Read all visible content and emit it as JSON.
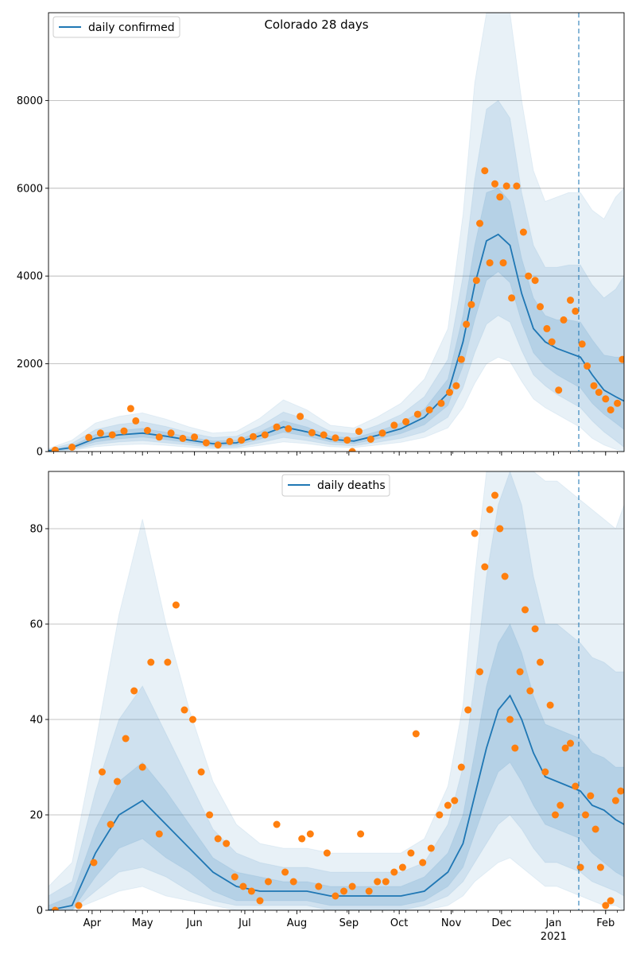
{
  "figure": {
    "title": "Colorado 28 days",
    "colors": {
      "line": "#1f77b4",
      "band": "#1f77b4",
      "points": "#ff7f0e",
      "grid": "#b0b0b0",
      "forecast_line": "#1f77b4"
    },
    "forecast_date": "2021-01-16"
  },
  "chart_data": [
    {
      "type": "line",
      "title": "Colorado 28 days",
      "legend": {
        "entries": [
          "daily confirmed"
        ],
        "placement": "top-left"
      },
      "xlabel": "",
      "ylabel": "",
      "x_range": [
        "2020-03-06",
        "2021-02-12"
      ],
      "ylim": [
        0,
        10000
      ],
      "y_ticks": [
        0,
        2000,
        4000,
        6000,
        8000
      ],
      "x_tick_labels": [
        "Apr",
        "May",
        "Jun",
        "Jul",
        "Aug",
        "Sep",
        "Oct",
        "Nov",
        "Dec",
        "Jan",
        "Feb"
      ],
      "x_tick_sublabel": {
        "Jan": "2021"
      },
      "grid": "horizontal",
      "forecast_date": "2021-01-16",
      "x": [
        "2020-03-06",
        "2020-03-20",
        "2020-04-03",
        "2020-04-17",
        "2020-05-01",
        "2020-05-15",
        "2020-05-29",
        "2020-06-12",
        "2020-06-26",
        "2020-07-10",
        "2020-07-24",
        "2020-08-07",
        "2020-08-21",
        "2020-09-04",
        "2020-09-18",
        "2020-10-02",
        "2020-10-16",
        "2020-10-30",
        "2020-11-08",
        "2020-11-15",
        "2020-11-22",
        "2020-11-29",
        "2020-12-06",
        "2020-12-13",
        "2020-12-20",
        "2020-12-27",
        "2021-01-03",
        "2021-01-10",
        "2021-01-17",
        "2021-01-24",
        "2021-01-31",
        "2021-02-07",
        "2021-02-12"
      ],
      "series": [
        {
          "name": "daily confirmed",
          "kind": "line",
          "values": [
            20,
            90,
            300,
            380,
            420,
            350,
            260,
            180,
            200,
            360,
            560,
            450,
            280,
            240,
            370,
            520,
            780,
            1330,
            2500,
            3800,
            4800,
            4950,
            4700,
            3600,
            2800,
            2500,
            2350,
            2250,
            2150,
            1750,
            1400,
            1250,
            1150
          ]
        },
        {
          "name": "",
          "kind": "band-50",
          "lower": [
            10,
            60,
            220,
            290,
            330,
            270,
            200,
            130,
            150,
            280,
            440,
            350,
            220,
            180,
            290,
            410,
            610,
            1050,
            1950,
            3000,
            3900,
            4100,
            3850,
            2950,
            2250,
            1950,
            1750,
            1600,
            1450,
            1100,
            850,
            650,
            500
          ],
          "upper": [
            35,
            130,
            390,
            480,
            530,
            440,
            330,
            240,
            260,
            450,
            700,
            560,
            350,
            310,
            460,
            650,
            970,
            1650,
            3100,
            4700,
            5900,
            6000,
            5700,
            4400,
            3500,
            3100,
            3000,
            3000,
            2950,
            2550,
            2200,
            2150,
            2150
          ]
        },
        {
          "name": "",
          "kind": "band-90",
          "lower": [
            5,
            40,
            160,
            220,
            250,
            200,
            150,
            90,
            100,
            200,
            320,
            250,
            160,
            130,
            210,
            300,
            450,
            780,
            1450,
            2250,
            2900,
            3100,
            2950,
            2300,
            1750,
            1500,
            1300,
            1150,
            1000,
            700,
            450,
            250,
            100
          ],
          "upper": [
            50,
            190,
            500,
            620,
            680,
            570,
            430,
            320,
            350,
            580,
            900,
            730,
            460,
            410,
            600,
            840,
            1250,
            2100,
            4000,
            6200,
            7800,
            8000,
            7600,
            5900,
            4700,
            4200,
            4200,
            4250,
            4250,
            3800,
            3500,
            3700,
            4000
          ]
        },
        {
          "name": "",
          "kind": "band-98",
          "lower": [
            0,
            20,
            110,
            150,
            170,
            140,
            100,
            60,
            70,
            140,
            220,
            180,
            110,
            90,
            150,
            210,
            320,
            540,
            1000,
            1550,
            2000,
            2150,
            2050,
            1600,
            1200,
            1000,
            850,
            700,
            550,
            300,
            150,
            50,
            0
          ],
          "upper": [
            70,
            260,
            650,
            800,
            880,
            740,
            560,
            420,
            460,
            760,
            1180,
            950,
            600,
            540,
            790,
            1100,
            1650,
            2800,
            5400,
            8400,
            10500,
            10800,
            10200,
            8000,
            6400,
            5700,
            5800,
            5900,
            5900,
            5500,
            5300,
            5800,
            6000
          ]
        }
      ],
      "observed": {
        "x": [
          "2020-03-10",
          "2020-03-20",
          "2020-03-30",
          "2020-04-06",
          "2020-04-13",
          "2020-04-20",
          "2020-04-24",
          "2020-04-27",
          "2020-05-04",
          "2020-05-11",
          "2020-05-18",
          "2020-05-25",
          "2020-06-01",
          "2020-06-08",
          "2020-06-15",
          "2020-06-22",
          "2020-06-29",
          "2020-07-06",
          "2020-07-13",
          "2020-07-20",
          "2020-07-27",
          "2020-08-03",
          "2020-08-10",
          "2020-08-17",
          "2020-08-24",
          "2020-08-31",
          "2020-09-03",
          "2020-09-07",
          "2020-09-14",
          "2020-09-21",
          "2020-09-28",
          "2020-10-05",
          "2020-10-12",
          "2020-10-19",
          "2020-10-26",
          "2020-10-31",
          "2020-11-04",
          "2020-11-07",
          "2020-11-10",
          "2020-11-13",
          "2020-11-16",
          "2020-11-18",
          "2020-11-21",
          "2020-11-24",
          "2020-11-27",
          "2020-11-30",
          "2020-12-02",
          "2020-12-04",
          "2020-12-07",
          "2020-12-10",
          "2020-12-14",
          "2020-12-17",
          "2020-12-21",
          "2020-12-24",
          "2020-12-28",
          "2020-12-31",
          "2021-01-04",
          "2021-01-07",
          "2021-01-11",
          "2021-01-14",
          "2021-01-18",
          "2021-01-21",
          "2021-01-25",
          "2021-01-28",
          "2021-02-01",
          "2021-02-04",
          "2021-02-08",
          "2021-02-11"
        ],
        "values": [
          30,
          100,
          320,
          420,
          380,
          470,
          980,
          700,
          480,
          330,
          420,
          300,
          330,
          200,
          150,
          230,
          260,
          340,
          380,
          560,
          520,
          800,
          430,
          380,
          310,
          260,
          0,
          460,
          280,
          420,
          600,
          680,
          850,
          950,
          1100,
          1350,
          1500,
          2100,
          2900,
          3350,
          3900,
          5200,
          6400,
          4300,
          6100,
          5800,
          4300,
          6050,
          3500,
          6050,
          5000,
          4000,
          3900,
          3300,
          2800,
          2500,
          1400,
          3000,
          3450,
          3200,
          2450,
          1950,
          1500,
          1350,
          1200,
          950,
          1100,
          2100
        ]
      }
    },
    {
      "type": "line",
      "title": "",
      "legend": {
        "entries": [
          "daily deaths"
        ],
        "placement": "top-center"
      },
      "xlabel": "",
      "ylabel": "",
      "x_range": [
        "2020-03-06",
        "2021-02-12"
      ],
      "ylim": [
        0,
        92
      ],
      "y_ticks": [
        0,
        20,
        40,
        60,
        80
      ],
      "x_tick_labels": [
        "Apr",
        "May",
        "Jun",
        "Jul",
        "Aug",
        "Sep",
        "Oct",
        "Nov",
        "Dec",
        "Jan",
        "Feb"
      ],
      "x_tick_sublabel": {
        "Jan": "2021"
      },
      "grid": "horizontal",
      "forecast_date": "2021-01-16",
      "x": [
        "2020-03-06",
        "2020-03-20",
        "2020-04-03",
        "2020-04-17",
        "2020-05-01",
        "2020-05-15",
        "2020-05-29",
        "2020-06-12",
        "2020-06-26",
        "2020-07-10",
        "2020-07-24",
        "2020-08-07",
        "2020-08-21",
        "2020-09-04",
        "2020-09-18",
        "2020-10-02",
        "2020-10-16",
        "2020-10-30",
        "2020-11-08",
        "2020-11-15",
        "2020-11-22",
        "2020-11-29",
        "2020-12-06",
        "2020-12-13",
        "2020-12-20",
        "2020-12-27",
        "2021-01-03",
        "2021-01-10",
        "2021-01-17",
        "2021-01-24",
        "2021-01-31",
        "2021-02-07",
        "2021-02-12"
      ],
      "series": [
        {
          "name": "daily deaths",
          "kind": "line",
          "values": [
            0,
            1,
            12,
            20,
            23,
            18,
            13,
            8,
            5,
            4,
            4,
            4,
            3,
            3,
            3,
            3,
            4,
            8,
            14,
            24,
            34,
            42,
            45,
            40,
            33,
            28,
            27,
            26,
            25,
            22,
            21,
            19,
            18
          ]
        },
        {
          "name": "",
          "kind": "band-50",
          "lower": [
            0,
            0,
            7,
            13,
            15,
            11,
            8,
            4,
            2,
            2,
            2,
            2,
            1,
            1,
            1,
            1,
            2,
            5,
            9,
            16,
            23,
            29,
            31,
            27,
            22,
            18,
            17,
            16,
            15,
            12,
            10,
            8,
            7
          ],
          "upper": [
            1,
            3,
            17,
            27,
            31,
            25,
            18,
            11,
            8,
            7,
            6,
            6,
            5,
            5,
            5,
            5,
            7,
            12,
            20,
            33,
            47,
            56,
            60,
            54,
            45,
            39,
            38,
            37,
            36,
            33,
            32,
            30,
            30
          ]
        },
        {
          "name": "",
          "kind": "band-90",
          "lower": [
            0,
            0,
            4,
            8,
            9,
            7,
            4,
            2,
            1,
            1,
            1,
            1,
            0,
            0,
            0,
            0,
            1,
            3,
            6,
            10,
            14,
            18,
            20,
            17,
            13,
            10,
            10,
            9,
            8,
            6,
            5,
            4,
            3
          ],
          "upper": [
            3,
            6,
            25,
            40,
            47,
            37,
            27,
            17,
            12,
            10,
            9,
            9,
            8,
            8,
            8,
            8,
            10,
            18,
            30,
            48,
            70,
            85,
            92,
            85,
            70,
            60,
            60,
            58,
            56,
            53,
            52,
            50,
            50
          ]
        },
        {
          "name": "",
          "kind": "band-98",
          "lower": [
            0,
            0,
            2,
            4,
            5,
            3,
            2,
            1,
            0,
            0,
            0,
            0,
            0,
            0,
            0,
            0,
            0,
            1,
            3,
            6,
            8,
            10,
            11,
            9,
            7,
            5,
            5,
            4,
            3,
            2,
            1,
            1,
            0
          ],
          "upper": [
            5,
            10,
            35,
            62,
            82,
            60,
            42,
            27,
            18,
            14,
            13,
            13,
            12,
            12,
            12,
            12,
            15,
            26,
            43,
            70,
            92,
            92,
            92,
            92,
            92,
            90,
            90,
            88,
            86,
            84,
            82,
            80,
            85
          ]
        }
      ],
      "observed": {
        "x": [
          "2020-03-10",
          "2020-03-24",
          "2020-04-02",
          "2020-04-07",
          "2020-04-12",
          "2020-04-16",
          "2020-04-21",
          "2020-04-26",
          "2020-05-01",
          "2020-05-06",
          "2020-05-11",
          "2020-05-16",
          "2020-05-21",
          "2020-05-26",
          "2020-05-31",
          "2020-06-05",
          "2020-06-10",
          "2020-06-15",
          "2020-06-20",
          "2020-06-25",
          "2020-06-30",
          "2020-07-05",
          "2020-07-10",
          "2020-07-15",
          "2020-07-20",
          "2020-07-25",
          "2020-07-30",
          "2020-08-04",
          "2020-08-09",
          "2020-08-14",
          "2020-08-19",
          "2020-08-24",
          "2020-08-29",
          "2020-09-03",
          "2020-09-08",
          "2020-09-13",
          "2020-09-18",
          "2020-09-23",
          "2020-09-28",
          "2020-10-03",
          "2020-10-08",
          "2020-10-11",
          "2020-10-15",
          "2020-10-20",
          "2020-10-25",
          "2020-10-30",
          "2020-11-03",
          "2020-11-07",
          "2020-11-11",
          "2020-11-15",
          "2020-11-18",
          "2020-11-21",
          "2020-11-24",
          "2020-11-27",
          "2020-11-30",
          "2020-12-03",
          "2020-12-06",
          "2020-12-09",
          "2020-12-12",
          "2020-12-15",
          "2020-12-18",
          "2020-12-21",
          "2020-12-24",
          "2020-12-27",
          "2020-12-30",
          "2021-01-02",
          "2021-01-05",
          "2021-01-08",
          "2021-01-11",
          "2021-01-14",
          "2021-01-17",
          "2021-01-20",
          "2021-01-23",
          "2021-01-26",
          "2021-01-29",
          "2021-02-01",
          "2021-02-04",
          "2021-02-07",
          "2021-02-10"
        ],
        "values": [
          0,
          1,
          10,
          29,
          18,
          27,
          36,
          46,
          30,
          52,
          16,
          52,
          64,
          42,
          40,
          29,
          20,
          15,
          14,
          7,
          5,
          4,
          2,
          6,
          18,
          8,
          6,
          15,
          16,
          5,
          12,
          3,
          4,
          5,
          16,
          4,
          6,
          6,
          8,
          9,
          12,
          37,
          10,
          13,
          20,
          22,
          23,
          30,
          42,
          79,
          50,
          72,
          84,
          87,
          80,
          70,
          40,
          34,
          50,
          63,
          46,
          59,
          52,
          29,
          43,
          20,
          22,
          34,
          35,
          26,
          9,
          20,
          24,
          17,
          9,
          1,
          2,
          23,
          25
        ]
      }
    }
  ]
}
